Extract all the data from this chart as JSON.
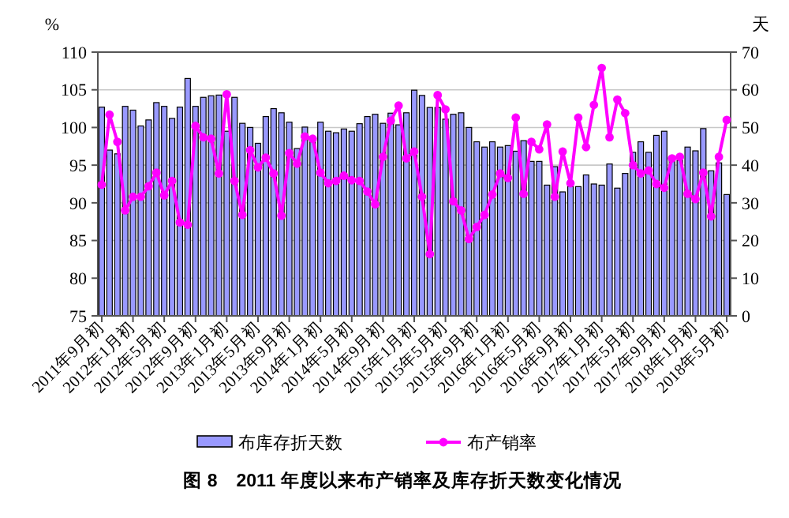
{
  "chart_data": {
    "type": "bar",
    "title": "图 8　2011 年度以来布产销率及库存折天数变化情况",
    "ylabel": "%",
    "y2label": "天",
    "categories": [
      "2011年9月初",
      null,
      null,
      null,
      "2012年1月初",
      null,
      null,
      null,
      "2012年5月初",
      null,
      null,
      null,
      "2012年9月初",
      null,
      null,
      null,
      "2013年1月初",
      null,
      null,
      null,
      "2013年5月初",
      null,
      null,
      null,
      "2013年9月初",
      null,
      null,
      null,
      "2014年1月初",
      null,
      null,
      null,
      "2014年5月初",
      null,
      null,
      null,
      "2014年9月初",
      null,
      null,
      null,
      "2015年1月初",
      null,
      null,
      null,
      "2015年5月初",
      null,
      null,
      null,
      "2015年9月初",
      null,
      null,
      null,
      "2016年1月初",
      null,
      null,
      null,
      "2016年5月初",
      null,
      null,
      null,
      "2016年9月初",
      null,
      null,
      null,
      "2017年1月初",
      null,
      null,
      null,
      "2017年5月初",
      null,
      null,
      null,
      "2017年9月初",
      null,
      null,
      null,
      "2018年1月初",
      null,
      null,
      null,
      "2018年5月初"
    ],
    "series": [
      {
        "name": "布库存折天数",
        "axis": "y2",
        "color": "#9999ff",
        "values": [
          55.4,
          44,
          43,
          55.6,
          54.6,
          50.4,
          52,
          56.6,
          55.6,
          52.4,
          55.4,
          63,
          55.6,
          58,
          58.4,
          58.6,
          49,
          58,
          51.1,
          50,
          45.8,
          52.9,
          55,
          53.9,
          51.4,
          44.4,
          50.1,
          47.3,
          51.4,
          49,
          48.6,
          49.6,
          49,
          51,
          52.9,
          53.5,
          51.1,
          53.8,
          50.7,
          53.9,
          59.9,
          58.5,
          55.3,
          55.3,
          52.2,
          53.5,
          53.9,
          50,
          46.2,
          44.8,
          46.2,
          44.8,
          45.2,
          43.7,
          46.5,
          41,
          41,
          34.7,
          39.6,
          32.9,
          34.3,
          34.3,
          37.4,
          35,
          34.7,
          40.3,
          33.9,
          37.8,
          43.4,
          46.2,
          43.4,
          47.9,
          49,
          42,
          41.3,
          44.8,
          43.8,
          49.7,
          38.5,
          40.6,
          32.2
        ]
      },
      {
        "name": "布产销率",
        "type": "line",
        "axis": "y",
        "color": "#ff00ff",
        "values": [
          92.4,
          101.7,
          98.1,
          89,
          90.8,
          90.8,
          92.2,
          94,
          91,
          92.9,
          87.4,
          87.1,
          100.2,
          98.7,
          98.5,
          93.9,
          104.4,
          92.9,
          88.4,
          97,
          94.7,
          96,
          93.9,
          88.3,
          96.6,
          95.2,
          98.8,
          98.5,
          94,
          92.6,
          92.9,
          93.6,
          93,
          92.9,
          91.5,
          89.8,
          96.1,
          100.9,
          102.9,
          95.9,
          96.8,
          90.8,
          83.2,
          104.3,
          102.4,
          90.2,
          89,
          85.2,
          86.8,
          88.4,
          91.1,
          93.9,
          93.3,
          101.3,
          91.2,
          98.1,
          97.1,
          100.4,
          90.8,
          96.8,
          92.6,
          101.3,
          97.4,
          103,
          107.9,
          98.7,
          103.7,
          101.9,
          95,
          93.9,
          94.3,
          92.5,
          92,
          95.9,
          96.1,
          91.2,
          90.5,
          94,
          88.2,
          96.1,
          101
        ]
      }
    ],
    "ylim": [
      75,
      110
    ],
    "yticks": [
      75,
      80,
      85,
      90,
      95,
      100,
      105,
      110
    ],
    "y2lim": [
      0,
      70
    ],
    "y2ticks": [
      0,
      10,
      20,
      30,
      40,
      50,
      60,
      70
    ],
    "grid": "y",
    "legend": "bottom",
    "marker": "circle"
  }
}
